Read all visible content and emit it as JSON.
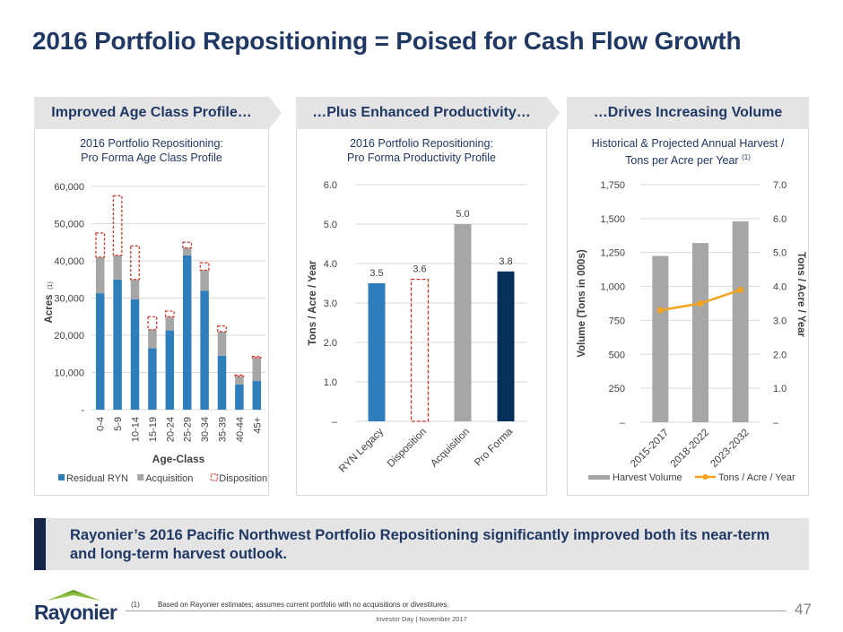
{
  "page": {
    "title": "2016 Portfolio Repositioning = Poised for Cash Flow Growth",
    "callout": "Rayonier’s 2016 Pacific Northwest Portfolio Repositioning significantly improved both its near-term and long-term harvest outlook.",
    "footnote_marker": "(1)",
    "footnote": "Based on Rayonier estimates; assumes current portfolio with no acquisitions or divestitures.",
    "footer": "Investor Day | November 2017",
    "page_number": "47",
    "logo_text": "Rayonier",
    "colors": {
      "title": "#1f3864",
      "residual_ryn": "#2e7ebc",
      "acquisition": "#a6a6a6",
      "disposition": "#d9342b",
      "pro_forma": "#062f5a",
      "tons_line": "#f5a21c"
    }
  },
  "panels": [
    {
      "banner": "Improved Age Class Profile…",
      "title_line1": "2016 Portfolio Repositioning:",
      "title_line2": "Pro Forma Age Class Profile"
    },
    {
      "banner": "…Plus Enhanced Productivity…",
      "title_line1": "2016 Portfolio Repositioning:",
      "title_line2": "Pro Forma Productivity Profile"
    },
    {
      "banner": "…Drives Increasing Volume",
      "title_line1": "Historical & Projected Annual Harvest /",
      "title_line2": "Tons per Acre per Year",
      "title_sup": "(1)"
    }
  ],
  "chart_data": [
    {
      "type": "bar",
      "stacked": true,
      "title": "2016 Portfolio Repositioning: Pro Forma Age Class Profile",
      "xlabel": "Age-Class",
      "ylabel": "Acres",
      "ylabel_sup": "(1)",
      "ylim": [
        0,
        60000
      ],
      "yticks": [
        0,
        10000,
        20000,
        30000,
        40000,
        50000,
        60000
      ],
      "ytick_labels": [
        "-",
        "10,000",
        "20,000",
        "30,000",
        "40,000",
        "50,000",
        "60,000"
      ],
      "categories": [
        "0-4",
        "5-9",
        "10-14",
        "15-19",
        "20-24",
        "25-29",
        "30-34",
        "35-39",
        "40-44",
        "45+"
      ],
      "series": [
        {
          "name": "Residual RYN",
          "style": "solid",
          "values": [
            31300,
            35000,
            29700,
            16500,
            21300,
            41500,
            32000,
            14500,
            6800,
            7700
          ]
        },
        {
          "name": "Acquisition",
          "style": "solid",
          "values": [
            9700,
            6500,
            5300,
            5000,
            3700,
            2000,
            5500,
            6500,
            2200,
            6300
          ]
        },
        {
          "name": "Disposition",
          "style": "dashed-outline",
          "values": [
            6500,
            16000,
            9000,
            3500,
            1500,
            1500,
            2000,
            1500,
            300,
            300
          ]
        }
      ],
      "legend": "bottom",
      "grid": true
    },
    {
      "type": "bar",
      "title": "2016 Portfolio Repositioning: Pro Forma Productivity Profile",
      "xlabel": "",
      "ylabel": "Tons / Acre / Year",
      "ylim": [
        0,
        6
      ],
      "yticks": [
        0,
        1,
        2,
        3,
        4,
        5,
        6
      ],
      "ytick_labels": [
        "–",
        "1.0",
        "2.0",
        "3.0",
        "4.0",
        "5.0",
        "6.0"
      ],
      "categories": [
        "RYN Legacy",
        "Disposition",
        "Acquisition",
        "Pro Forma"
      ],
      "values": [
        3.5,
        3.6,
        5.0,
        3.8
      ],
      "data_labels": [
        "3.5",
        "3.6",
        "5.0",
        "3.8"
      ],
      "bar_styles": [
        "residual",
        "dashed-outline",
        "acquisition",
        "pro-forma"
      ],
      "grid": true
    },
    {
      "type": "bar",
      "combo": "bar+line",
      "title": "Historical & Projected Annual Harvest / Tons per Acre per Year (1)",
      "ylabel": "Volume (Tons in 000s)",
      "y2label": "Tons / Acre / Year",
      "ylim": [
        0,
        1750
      ],
      "y2lim": [
        0,
        7
      ],
      "yticks": [
        0,
        250,
        500,
        750,
        1000,
        1250,
        1500,
        1750
      ],
      "ytick_labels": [
        "–",
        "250",
        "500",
        "750",
        "1,000",
        "1,250",
        "1,500",
        "1,750"
      ],
      "y2ticks": [
        0,
        1,
        2,
        3,
        4,
        5,
        6,
        7
      ],
      "y2tick_labels": [
        "–",
        "1.0",
        "2.0",
        "3.0",
        "4.0",
        "5.0",
        "6.0",
        "7.0"
      ],
      "categories": [
        "2015-2017",
        "2018-2022",
        "2023-2032"
      ],
      "series": [
        {
          "name": "Harvest Volume",
          "type": "bar",
          "axis": "left",
          "values": [
            1225,
            1320,
            1480
          ]
        },
        {
          "name": "Tons / Acre / Year",
          "type": "line",
          "axis": "right",
          "values": [
            3.3,
            3.5,
            3.9
          ]
        }
      ],
      "legend": "bottom",
      "grid": true
    }
  ]
}
